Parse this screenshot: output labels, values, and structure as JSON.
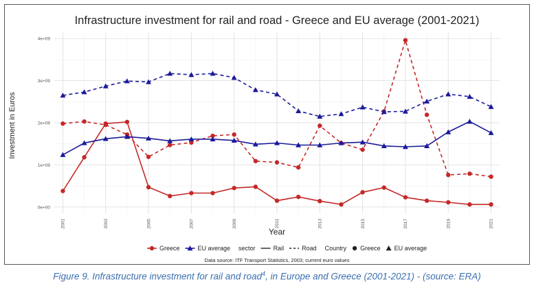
{
  "chart_data": {
    "type": "line",
    "title": "Infrastructure investment for rail and road - Greece and EU average (2001-2021)",
    "xlabel": "Year",
    "ylabel": "Investment in Euros",
    "ylim": [
      -150000000.0,
      4150000000.0
    ],
    "xlim": [
      2000.6,
      2021.4
    ],
    "grid": true,
    "x_ticks": [
      2001,
      2003,
      2005,
      2007,
      2009,
      2011,
      2013,
      2015,
      2017,
      2019,
      2021
    ],
    "x_tick_labels": [
      "2001",
      "2003",
      "2005",
      "2007",
      "2009",
      "2011",
      "2013",
      "2015",
      "2017",
      "2019",
      "2021"
    ],
    "y_ticks": [
      0,
      1000000000,
      2000000000,
      3000000000,
      4000000000
    ],
    "y_tick_labels": [
      "0e+00",
      "1e+09",
      "2e+09",
      "3e+09",
      "4e+09"
    ],
    "x": [
      2001,
      2002,
      2003,
      2004,
      2005,
      2006,
      2007,
      2008,
      2009,
      2010,
      2011,
      2012,
      2013,
      2014,
      2015,
      2016,
      2017,
      2018,
      2019,
      2020,
      2021
    ],
    "series": [
      {
        "country": "Greece",
        "sector": "Rail",
        "color": "#c62828",
        "marker": "circle",
        "dash": "solid",
        "values": [
          380000000.0,
          1180000000.0,
          1980000000.0,
          2020000000.0,
          470000000.0,
          260000000.0,
          330000000.0,
          330000000.0,
          450000000.0,
          480000000.0,
          150000000.0,
          240000000.0,
          140000000.0,
          60000000.0,
          350000000.0,
          460000000.0,
          230000000.0,
          150000000.0,
          110000000.0,
          60000000.0,
          60000000.0
        ]
      },
      {
        "country": "Greece",
        "sector": "Road",
        "color": "#c62828",
        "marker": "circle",
        "dash": "dashed",
        "values": [
          1980000000.0,
          2030000000.0,
          1950000000.0,
          1720000000.0,
          1190000000.0,
          1470000000.0,
          1530000000.0,
          1690000000.0,
          1720000000.0,
          1090000000.0,
          1060000000.0,
          940000000.0,
          1930000000.0,
          1520000000.0,
          1360000000.0,
          2270000000.0,
          3960000000.0,
          2190000000.0,
          760000000.0,
          790000000.0,
          720000000.0
        ]
      },
      {
        "country": "EU average",
        "sector": "Rail",
        "color": "#1a1a9a",
        "marker": "triangle",
        "dash": "solid",
        "values": [
          1240000000.0,
          1520000000.0,
          1620000000.0,
          1670000000.0,
          1630000000.0,
          1570000000.0,
          1610000000.0,
          1610000000.0,
          1580000000.0,
          1490000000.0,
          1520000000.0,
          1470000000.0,
          1470000000.0,
          1520000000.0,
          1540000000.0,
          1450000000.0,
          1430000000.0,
          1450000000.0,
          1780000000.0,
          2030000000.0,
          1760000000.0
        ]
      },
      {
        "country": "EU average",
        "sector": "Road",
        "color": "#1a1a9a",
        "marker": "triangle",
        "dash": "dashed",
        "values": [
          2650000000.0,
          2730000000.0,
          2870000000.0,
          2990000000.0,
          2970000000.0,
          3170000000.0,
          3140000000.0,
          3170000000.0,
          3070000000.0,
          2780000000.0,
          2680000000.0,
          2280000000.0,
          2150000000.0,
          2210000000.0,
          2370000000.0,
          2260000000.0,
          2270000000.0,
          2510000000.0,
          2680000000.0,
          2620000000.0,
          2380000000.0
        ]
      }
    ],
    "legend": {
      "placement": "bottom",
      "country_items": [
        {
          "label": "Greece",
          "color": "#c62828",
          "marker": "circle"
        },
        {
          "label": "EU average",
          "color": "#1a1a9a",
          "marker": "triangle"
        }
      ],
      "sector_title": "sector",
      "sector_items": [
        {
          "label": "Rail",
          "dash": "solid"
        },
        {
          "label": "Road",
          "dash": "dashed"
        }
      ],
      "shape_title": "Country",
      "shape_items": [
        {
          "label": "Greece",
          "marker": "circle"
        },
        {
          "label": "EU average",
          "marker": "triangle"
        }
      ]
    },
    "source_note": "Data source: ITF Transport Statistics, 2003; current euro values"
  },
  "caption": {
    "prefix": "Figure 9. Infrastructure investment for rail and road",
    "superscript": "4",
    "suffix": ", in Europe and Greece (2001-2021) - (source: ERA)"
  }
}
